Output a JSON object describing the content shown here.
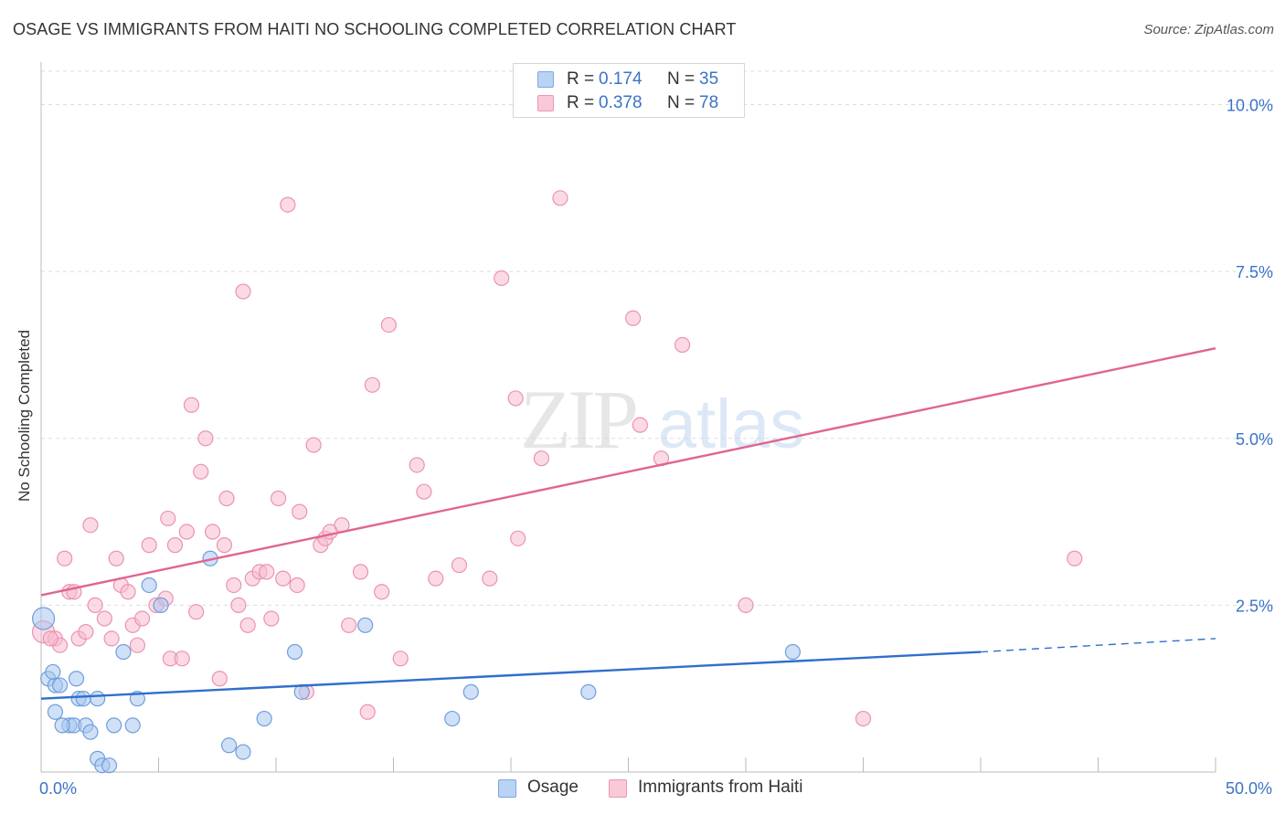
{
  "title": "OSAGE VS IMMIGRANTS FROM HAITI NO SCHOOLING COMPLETED CORRELATION CHART",
  "source": "Source: ZipAtlas.com",
  "watermark": {
    "zip": "ZIP",
    "atlas": "atlas"
  },
  "legend_stats": {
    "osage": {
      "r_label": "R =",
      "r_value": "0.174",
      "n_label": "N =",
      "n_value": "35"
    },
    "haiti": {
      "r_label": "R =",
      "r_value": "0.378",
      "n_label": "N =",
      "n_value": "78"
    }
  },
  "bottom_legend": {
    "osage": "Osage",
    "haiti": "Immigrants from Haiti"
  },
  "colors": {
    "osage_fill": "#a9c7ef",
    "osage_stroke": "#6f9fdc",
    "osage_line": "#2f6fcc",
    "haiti_fill": "#f7bcd0",
    "haiti_stroke": "#ea93b2",
    "haiti_line": "#e0658f",
    "tick_label": "#3b73c6",
    "grid": "#dddddd"
  },
  "chart_data": {
    "type": "scatter",
    "title": "OSAGE VS IMMIGRANTS FROM HAITI NO SCHOOLING COMPLETED CORRELATION CHART",
    "xlabel": "",
    "ylabel": "No Schooling Completed",
    "xlim": [
      0,
      50
    ],
    "ylim": [
      0,
      10.5
    ],
    "x_tick_labels": [
      {
        "value": 0,
        "label": "0.0%"
      },
      {
        "value": 50,
        "label": "50.0%"
      }
    ],
    "y_tick_labels": [
      {
        "value": 2.5,
        "label": "2.5%"
      },
      {
        "value": 5.0,
        "label": "5.0%"
      },
      {
        "value": 7.5,
        "label": "7.5%"
      },
      {
        "value": 10.0,
        "label": "10.0%"
      }
    ],
    "series": [
      {
        "name": "Osage",
        "r": 0.174,
        "n": 35,
        "trend": {
          "x0": 0,
          "y0": 1.1,
          "x1": 40,
          "y1": 1.8,
          "dash_to_x": 50,
          "dash_to_y": 2.0
        },
        "points": [
          [
            0.1,
            2.3
          ],
          [
            0.3,
            1.4
          ],
          [
            0.6,
            1.3
          ],
          [
            0.8,
            1.3
          ],
          [
            0.5,
            1.5
          ],
          [
            0.6,
            0.9
          ],
          [
            1.2,
            0.7
          ],
          [
            1.4,
            0.7
          ],
          [
            1.6,
            1.1
          ],
          [
            1.8,
            1.1
          ],
          [
            1.9,
            0.7
          ],
          [
            2.1,
            0.6
          ],
          [
            2.4,
            1.1
          ],
          [
            2.4,
            0.2
          ],
          [
            2.6,
            0.1
          ],
          [
            2.9,
            0.1
          ],
          [
            3.1,
            0.7
          ],
          [
            3.5,
            1.8
          ],
          [
            3.9,
            0.7
          ],
          [
            4.1,
            1.1
          ],
          [
            4.6,
            2.8
          ],
          [
            5.1,
            2.5
          ],
          [
            7.2,
            3.2
          ],
          [
            8.0,
            0.4
          ],
          [
            8.6,
            0.3
          ],
          [
            9.5,
            0.8
          ],
          [
            10.8,
            1.8
          ],
          [
            11.1,
            1.2
          ],
          [
            13.8,
            2.2
          ],
          [
            17.5,
            0.8
          ],
          [
            18.3,
            1.2
          ],
          [
            23.3,
            1.2
          ],
          [
            32.0,
            1.8
          ],
          [
            1.5,
            1.4
          ],
          [
            0.9,
            0.7
          ]
        ]
      },
      {
        "name": "Immigrants from Haiti",
        "r": 0.378,
        "n": 78,
        "trend": {
          "x0": 0,
          "y0": 2.65,
          "x1": 50,
          "y1": 6.35
        },
        "points": [
          [
            0.1,
            2.1
          ],
          [
            0.6,
            2.0
          ],
          [
            0.8,
            1.9
          ],
          [
            1.0,
            3.2
          ],
          [
            1.2,
            2.7
          ],
          [
            1.4,
            2.7
          ],
          [
            1.6,
            2.0
          ],
          [
            1.9,
            2.1
          ],
          [
            2.1,
            3.7
          ],
          [
            2.3,
            2.5
          ],
          [
            2.7,
            2.3
          ],
          [
            3.0,
            2.0
          ],
          [
            3.2,
            3.2
          ],
          [
            3.4,
            2.8
          ],
          [
            3.7,
            2.7
          ],
          [
            3.9,
            2.2
          ],
          [
            4.1,
            1.9
          ],
          [
            4.3,
            2.3
          ],
          [
            4.6,
            3.4
          ],
          [
            4.9,
            2.5
          ],
          [
            5.3,
            2.6
          ],
          [
            5.4,
            3.8
          ],
          [
            5.5,
            1.7
          ],
          [
            5.7,
            3.4
          ],
          [
            6.0,
            1.7
          ],
          [
            6.2,
            3.6
          ],
          [
            6.4,
            5.5
          ],
          [
            6.6,
            2.4
          ],
          [
            6.8,
            4.5
          ],
          [
            7.0,
            5.0
          ],
          [
            7.3,
            3.6
          ],
          [
            7.6,
            1.4
          ],
          [
            7.8,
            3.4
          ],
          [
            7.9,
            4.1
          ],
          [
            8.2,
            2.8
          ],
          [
            8.4,
            2.5
          ],
          [
            8.6,
            7.2
          ],
          [
            8.8,
            2.2
          ],
          [
            9.0,
            2.9
          ],
          [
            9.3,
            3.0
          ],
          [
            9.6,
            3.0
          ],
          [
            9.8,
            2.3
          ],
          [
            10.1,
            4.1
          ],
          [
            10.3,
            2.9
          ],
          [
            10.5,
            8.5
          ],
          [
            10.9,
            2.8
          ],
          [
            11.0,
            3.9
          ],
          [
            11.3,
            1.2
          ],
          [
            11.6,
            4.9
          ],
          [
            11.9,
            3.4
          ],
          [
            12.1,
            3.5
          ],
          [
            12.3,
            3.6
          ],
          [
            12.8,
            3.7
          ],
          [
            13.1,
            2.2
          ],
          [
            13.6,
            3.0
          ],
          [
            13.9,
            0.9
          ],
          [
            14.1,
            5.8
          ],
          [
            14.5,
            2.7
          ],
          [
            14.8,
            6.7
          ],
          [
            15.3,
            1.7
          ],
          [
            16.0,
            4.6
          ],
          [
            16.3,
            4.2
          ],
          [
            16.8,
            2.9
          ],
          [
            17.8,
            3.1
          ],
          [
            19.1,
            2.9
          ],
          [
            19.6,
            7.4
          ],
          [
            20.2,
            5.6
          ],
          [
            20.3,
            3.5
          ],
          [
            21.3,
            4.7
          ],
          [
            22.1,
            8.6
          ],
          [
            25.2,
            6.8
          ],
          [
            25.5,
            5.2
          ],
          [
            26.4,
            4.7
          ],
          [
            27.3,
            6.4
          ],
          [
            30.0,
            2.5
          ],
          [
            35.0,
            0.8
          ],
          [
            44.0,
            3.2
          ],
          [
            0.4,
            2.0
          ]
        ]
      }
    ]
  }
}
